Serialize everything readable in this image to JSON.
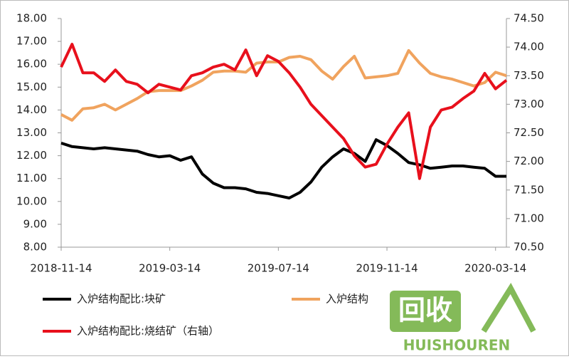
{
  "chart_data": {
    "type": "line",
    "categories": [
      "2018-11-14",
      null,
      null,
      null,
      null,
      null,
      null,
      null,
      null,
      null,
      "2019-03-14",
      null,
      null,
      null,
      null,
      null,
      null,
      null,
      null,
      null,
      "2019-07-14",
      null,
      null,
      null,
      null,
      null,
      null,
      null,
      null,
      null,
      "2019-11-14",
      null,
      null,
      null,
      null,
      null,
      null,
      null,
      null,
      null,
      "2020-03-14",
      null
    ],
    "series": [
      {
        "name": "入炉结构配比:块矿",
        "color": "#000000",
        "values": [
          12.55,
          12.4,
          12.35,
          12.3,
          12.35,
          12.3,
          12.25,
          12.2,
          12.05,
          11.95,
          12.0,
          11.8,
          11.95,
          11.2,
          10.8,
          10.6,
          10.6,
          10.55,
          10.4,
          10.35,
          10.25,
          10.15,
          10.4,
          10.85,
          11.5,
          11.95,
          12.3,
          12.1,
          11.75,
          12.7,
          12.45,
          12.1,
          11.7,
          11.6,
          11.45,
          11.5,
          11.55,
          11.55,
          11.5,
          11.45,
          11.1,
          11.1
        ]
      },
      {
        "name": "入炉结构",
        "color": "#f0a35e",
        "values": [
          13.8,
          13.55,
          14.05,
          14.1,
          14.25,
          14.0,
          14.25,
          14.5,
          14.8,
          14.85,
          14.85,
          14.85,
          15.05,
          15.3,
          15.65,
          15.7,
          15.7,
          15.65,
          16.05,
          16.1,
          16.1,
          16.3,
          16.35,
          16.2,
          15.7,
          15.35,
          15.9,
          16.35,
          15.4,
          15.45,
          15.5,
          15.6,
          16.6,
          16.05,
          15.6,
          15.45,
          15.35,
          15.2,
          15.05,
          15.2,
          15.65,
          15.5
        ]
      },
      {
        "name": "入炉结构配比:烧结矿（右轴）",
        "color": "#e8101c",
        "axis": "y2",
        "values": [
          73.65,
          74.05,
          73.55,
          73.55,
          73.4,
          73.6,
          73.4,
          73.35,
          73.2,
          73.35,
          73.3,
          73.25,
          73.5,
          73.55,
          73.65,
          73.7,
          73.6,
          73.95,
          73.5,
          73.85,
          73.75,
          73.55,
          73.3,
          73.0,
          72.8,
          72.6,
          72.4,
          72.1,
          71.9,
          71.95,
          72.3,
          72.6,
          72.85,
          71.7,
          72.6,
          72.9,
          72.95,
          73.1,
          73.23,
          73.54,
          73.27,
          73.42
        ]
      }
    ],
    "ylim": [
      8,
      18
    ],
    "yticks": [
      {
        "value": 8,
        "label": "8.00"
      },
      {
        "value": 9,
        "label": "9.00"
      },
      {
        "value": 10,
        "label": "10.00"
      },
      {
        "value": 11,
        "label": "11.00"
      },
      {
        "value": 12,
        "label": "12.00"
      },
      {
        "value": 13,
        "label": "13.00"
      },
      {
        "value": 14,
        "label": "14.00"
      },
      {
        "value": 15,
        "label": "15.00"
      },
      {
        "value": 16,
        "label": "16.00"
      },
      {
        "value": 17,
        "label": "17.00"
      },
      {
        "value": 18,
        "label": "18.00"
      }
    ],
    "y2lim": [
      70.5,
      74.5
    ],
    "y2ticks": [
      {
        "value": 70.5,
        "label": "70.50"
      },
      {
        "value": 71,
        "label": "71.00"
      },
      {
        "value": 71.5,
        "label": "71.50"
      },
      {
        "value": 72,
        "label": "72.00"
      },
      {
        "value": 72.5,
        "label": "72.50"
      },
      {
        "value": 73,
        "label": "73.00"
      },
      {
        "value": 73.5,
        "label": "73.50"
      },
      {
        "value": 74,
        "label": "74.00"
      },
      {
        "value": 74.5,
        "label": "74.50"
      }
    ],
    "grid": false,
    "legend": "bottom"
  },
  "watermark": {
    "logo": "回收",
    "text": "HUISHOUREN"
  }
}
